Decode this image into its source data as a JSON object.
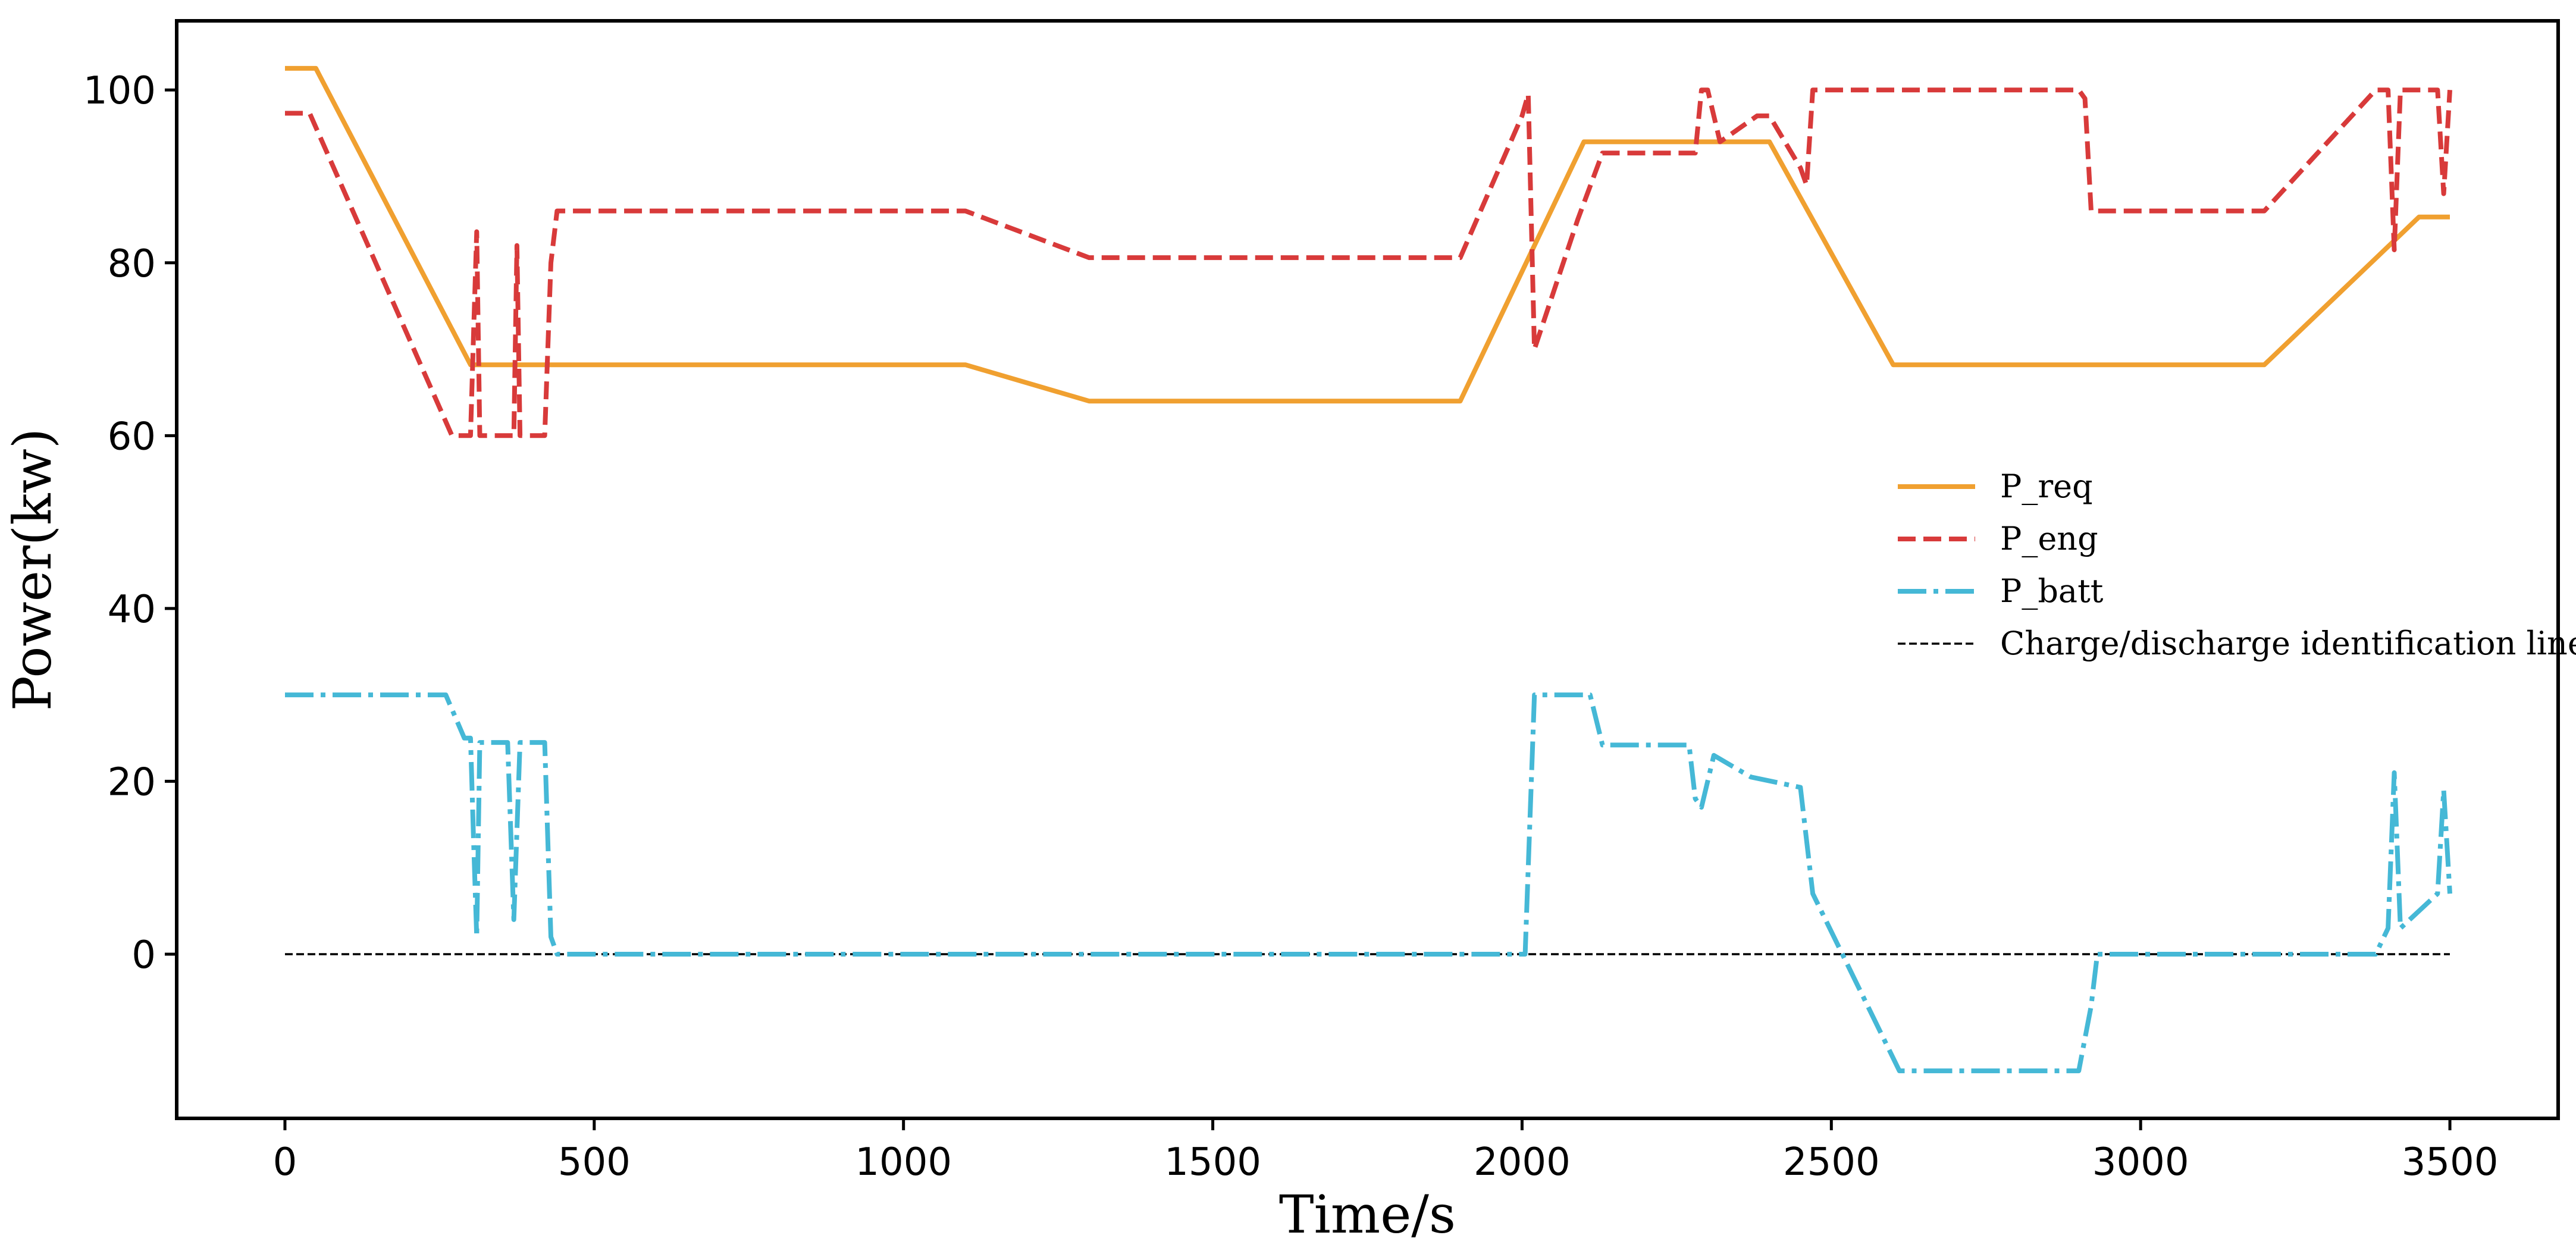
{
  "chart_data": {
    "type": "line",
    "title": "",
    "xlabel": "Time/s",
    "ylabel": "Power(kw)",
    "xlim": [
      -175,
      3675
    ],
    "ylim": [
      -19,
      108
    ],
    "xticks": [
      0,
      500,
      1000,
      1500,
      2000,
      2500,
      3000,
      3500
    ],
    "yticks": [
      0,
      20,
      40,
      60,
      80,
      100
    ],
    "grid": false,
    "legend_position": "center-right",
    "series": [
      {
        "name": "P_req",
        "color": "#F0A030",
        "style": "solid",
        "points": [
          [
            0,
            102.5
          ],
          [
            50,
            102.5
          ],
          [
            300,
            68.2
          ],
          [
            1100,
            68.2
          ],
          [
            1300,
            64
          ],
          [
            1900,
            64
          ],
          [
            2100,
            94
          ],
          [
            2400,
            94
          ],
          [
            2600,
            68.2
          ],
          [
            3200,
            68.2
          ],
          [
            3450,
            85.3
          ],
          [
            3500,
            85.3
          ]
        ]
      },
      {
        "name": "P_eng",
        "color": "#D83A3A",
        "style": "dashed",
        "points": [
          [
            0,
            97.3
          ],
          [
            40,
            97.3
          ],
          [
            270,
            60
          ],
          [
            300,
            60
          ],
          [
            305,
            72
          ],
          [
            310,
            83.6
          ],
          [
            315,
            60
          ],
          [
            370,
            60
          ],
          [
            375,
            82
          ],
          [
            380,
            60
          ],
          [
            420,
            60
          ],
          [
            430,
            80
          ],
          [
            440,
            86
          ],
          [
            1100,
            86
          ],
          [
            1300,
            80.6
          ],
          [
            1900,
            80.6
          ],
          [
            2000,
            97
          ],
          [
            2010,
            99.5
          ],
          [
            2020,
            70
          ],
          [
            2090,
            85
          ],
          [
            2130,
            92.7
          ],
          [
            2280,
            92.7
          ],
          [
            2290,
            100
          ],
          [
            2300,
            100
          ],
          [
            2320,
            94
          ],
          [
            2380,
            97
          ],
          [
            2400,
            97
          ],
          [
            2450,
            91
          ],
          [
            2460,
            89
          ],
          [
            2470,
            100
          ],
          [
            2900,
            100
          ],
          [
            2910,
            99
          ],
          [
            2920,
            86
          ],
          [
            3200,
            86
          ],
          [
            3380,
            100
          ],
          [
            3400,
            100
          ],
          [
            3410,
            81.5
          ],
          [
            3420,
            100
          ],
          [
            3480,
            100
          ],
          [
            3490,
            88
          ],
          [
            3500,
            100
          ]
        ]
      },
      {
        "name": "P_batt",
        "color": "#45B8D6",
        "style": "dashdot",
        "points": [
          [
            0,
            30
          ],
          [
            260,
            30
          ],
          [
            290,
            25
          ],
          [
            300,
            25
          ],
          [
            305,
            13
          ],
          [
            310,
            2
          ],
          [
            315,
            24.5
          ],
          [
            360,
            24.5
          ],
          [
            370,
            4
          ],
          [
            380,
            24.5
          ],
          [
            420,
            24.5
          ],
          [
            430,
            2
          ],
          [
            440,
            0
          ],
          [
            2005,
            0
          ],
          [
            2020,
            30
          ],
          [
            2110,
            30
          ],
          [
            2130,
            24.2
          ],
          [
            2270,
            24.2
          ],
          [
            2280,
            18
          ],
          [
            2290,
            17
          ],
          [
            2310,
            23
          ],
          [
            2370,
            20.5
          ],
          [
            2450,
            19.3
          ],
          [
            2470,
            7
          ],
          [
            2610,
            -13.5
          ],
          [
            2900,
            -13.5
          ],
          [
            2920,
            -6
          ],
          [
            2930,
            0
          ],
          [
            3380,
            0
          ],
          [
            3400,
            3
          ],
          [
            3410,
            21
          ],
          [
            3420,
            3
          ],
          [
            3480,
            7
          ],
          [
            3490,
            19
          ],
          [
            3500,
            7
          ]
        ]
      },
      {
        "name": "Charge/discharge identification line",
        "color": "#000000",
        "style": "thin-dashed",
        "points": [
          [
            0,
            0
          ],
          [
            3500,
            0
          ]
        ]
      }
    ]
  }
}
